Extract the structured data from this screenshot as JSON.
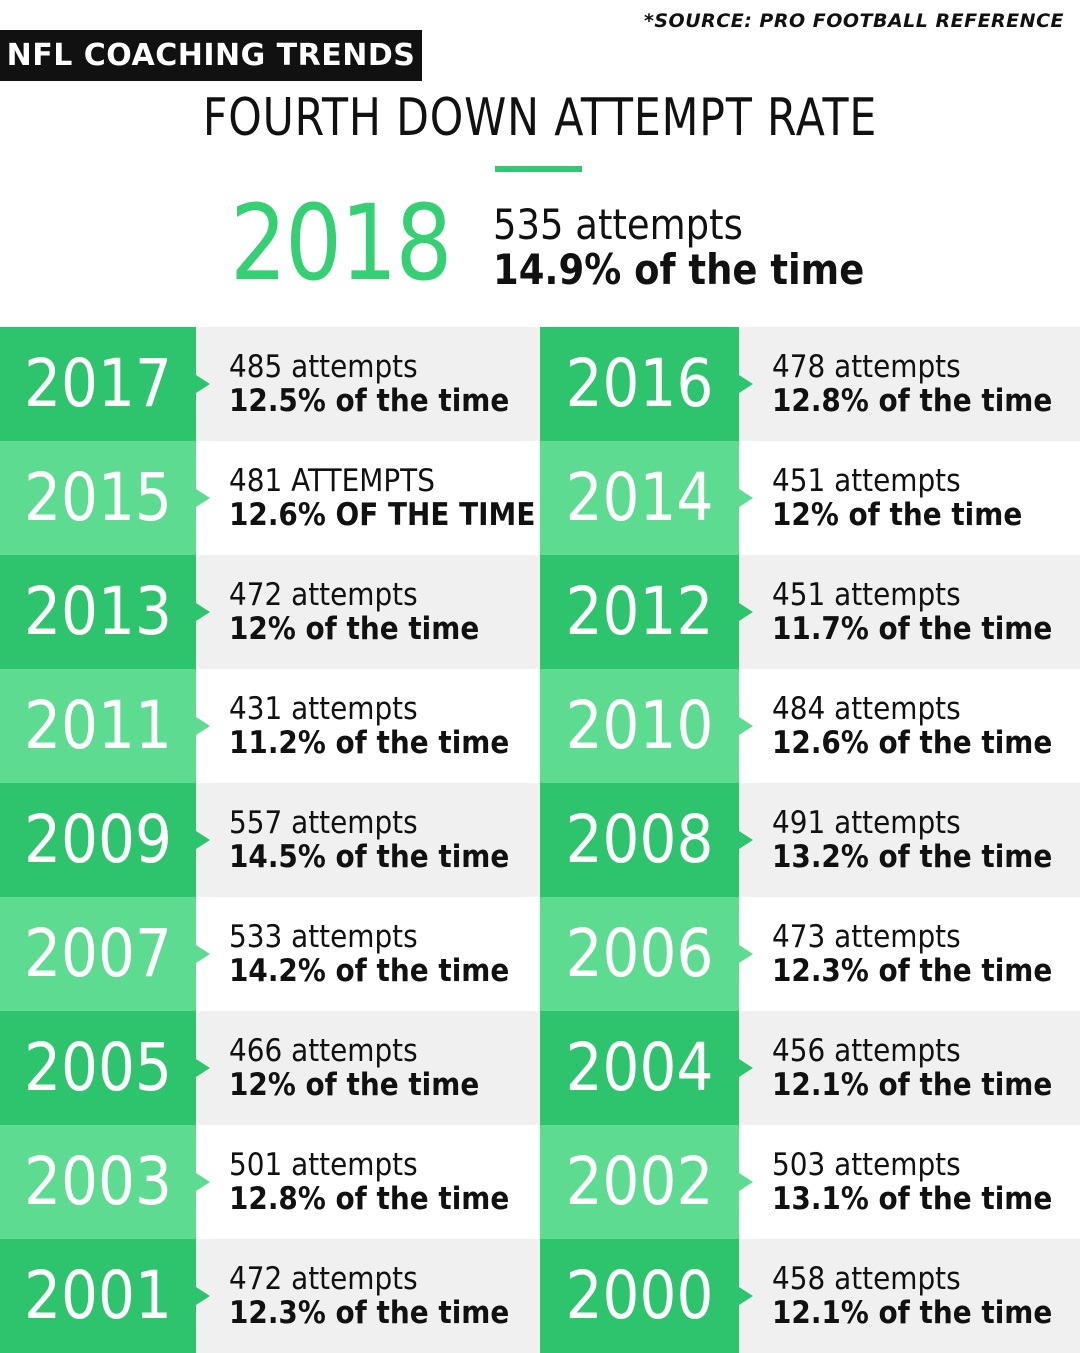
{
  "source": "*SOURCE: PRO FOOTBALL REFERENCE",
  "badge": "NFL COACHING TRENDS",
  "title": "FOURTH DOWN ATTEMPT RATE",
  "featured": {
    "year": "2018",
    "attempts": "535 attempts",
    "rate": "14.9% of the time"
  },
  "colors": {
    "accent_green": "#2ec46d",
    "light_green": "#5cdb91",
    "hero_green": "#35cf74",
    "badge_bg": "#111111",
    "row_gray": "#eff0ef"
  },
  "rows": [
    {
      "left": {
        "year": "2017",
        "attempts": "485 attempts",
        "rate": "12.5% of the time"
      },
      "right": {
        "year": "2016",
        "attempts": "478 attempts",
        "rate": "12.8% of the time"
      }
    },
    {
      "left": {
        "year": "2015",
        "attempts": "481 ATTEMPTS",
        "rate": "12.6% OF THE TIME"
      },
      "right": {
        "year": "2014",
        "attempts": "451 attempts",
        "rate": "12% of the time"
      }
    },
    {
      "left": {
        "year": "2013",
        "attempts": "472 attempts",
        "rate": "12% of the time"
      },
      "right": {
        "year": "2012",
        "attempts": "451 attempts",
        "rate": "11.7% of the time"
      }
    },
    {
      "left": {
        "year": "2011",
        "attempts": "431 attempts",
        "rate": "11.2% of the time"
      },
      "right": {
        "year": "2010",
        "attempts": "484 attempts",
        "rate": "12.6% of the time"
      }
    },
    {
      "left": {
        "year": "2009",
        "attempts": "557 attempts",
        "rate": "14.5% of the time"
      },
      "right": {
        "year": "2008",
        "attempts": "491 attempts",
        "rate": "13.2% of the time"
      }
    },
    {
      "left": {
        "year": "2007",
        "attempts": "533 attempts",
        "rate": "14.2% of the time"
      },
      "right": {
        "year": "2006",
        "attempts": "473 attempts",
        "rate": "12.3% of the time"
      }
    },
    {
      "left": {
        "year": "2005",
        "attempts": "466 attempts",
        "rate": "12% of the time"
      },
      "right": {
        "year": "2004",
        "attempts": "456 attempts",
        "rate": "12.1% of the time"
      }
    },
    {
      "left": {
        "year": "2003",
        "attempts": "501 attempts",
        "rate": "12.8% of the time"
      },
      "right": {
        "year": "2002",
        "attempts": "503 attempts",
        "rate": "13.1% of the time"
      }
    },
    {
      "left": {
        "year": "2001",
        "attempts": "472 attempts",
        "rate": "12.3% of the time"
      },
      "right": {
        "year": "2000",
        "attempts": "458 attempts",
        "rate": "12.1% of the time"
      }
    }
  ]
}
